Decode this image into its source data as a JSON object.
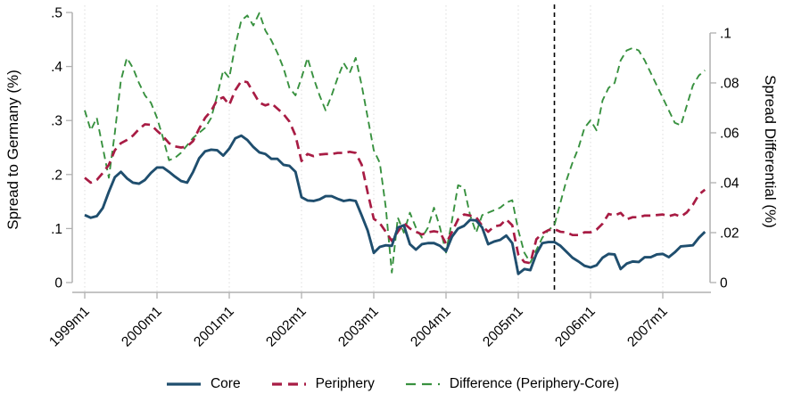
{
  "axes": {
    "left_title": "Spread to Germany (%)",
    "right_title": "Spread Differential (%)",
    "left_ticks": [
      "0",
      ".1",
      ".2",
      ".3",
      ".4",
      ".5"
    ],
    "right_ticks": [
      "0",
      ".02",
      ".04",
      ".06",
      ".08",
      ".1"
    ],
    "x_ticks": [
      "1999m1",
      "2000m1",
      "2001m1",
      "2002m1",
      "2003m1",
      "2004m1",
      "2005m1",
      "2006m1",
      "2007m1"
    ]
  },
  "legend": {
    "core_label": "Core",
    "periphery_label": "Periphery",
    "difference_label": "Difference (Periphery-Core)"
  },
  "colors": {
    "core": "#1f4e6e",
    "periphery": "#a81c44",
    "difference": "#38913f",
    "reference_line": "#000000",
    "grid": "#dcdcdc",
    "axis": "#b0b0b0"
  },
  "chart_data": {
    "type": "line",
    "x_start": "1999m1",
    "x_end": "2007m8",
    "frequency": "monthly",
    "x_tick_labels": [
      "1999m1",
      "2000m1",
      "2001m1",
      "2002m1",
      "2003m1",
      "2004m1",
      "2005m1",
      "2006m1",
      "2007m1"
    ],
    "left_ylim": [
      0,
      0.5
    ],
    "right_ylim": [
      0,
      0.1
    ],
    "grid": "vertical-dotted-at-years",
    "legend_position": "bottom-center",
    "reference_line_x": "2005m7",
    "series": [
      {
        "name": "Core",
        "axis": "left",
        "style": "solid",
        "values": [
          0.125,
          0.12,
          0.123,
          0.138,
          0.168,
          0.195,
          0.205,
          0.193,
          0.185,
          0.183,
          0.19,
          0.203,
          0.213,
          0.213,
          0.205,
          0.196,
          0.188,
          0.185,
          0.205,
          0.23,
          0.243,
          0.246,
          0.245,
          0.235,
          0.248,
          0.267,
          0.272,
          0.264,
          0.251,
          0.241,
          0.238,
          0.229,
          0.229,
          0.218,
          0.216,
          0.205,
          0.158,
          0.152,
          0.151,
          0.154,
          0.16,
          0.16,
          0.155,
          0.151,
          0.153,
          0.151,
          0.124,
          0.096,
          0.055,
          0.066,
          0.069,
          0.068,
          0.102,
          0.106,
          0.071,
          0.061,
          0.071,
          0.073,
          0.073,
          0.068,
          0.058,
          0.085,
          0.1,
          0.105,
          0.116,
          0.115,
          0.102,
          0.071,
          0.076,
          0.079,
          0.087,
          0.073,
          0.016,
          0.025,
          0.023,
          0.053,
          0.073,
          0.075,
          0.075,
          0.068,
          0.057,
          0.046,
          0.039,
          0.031,
          0.028,
          0.032,
          0.046,
          0.053,
          0.052,
          0.025,
          0.035,
          0.039,
          0.038,
          0.047,
          0.047,
          0.052,
          0.053,
          0.047,
          0.056,
          0.067,
          0.068,
          0.069,
          0.083,
          0.094
        ]
      },
      {
        "name": "Periphery",
        "axis": "left",
        "style": "dashed",
        "values": [
          0.194,
          0.185,
          0.19,
          0.203,
          0.218,
          0.245,
          0.258,
          0.264,
          0.272,
          0.284,
          0.293,
          0.292,
          0.281,
          0.271,
          0.258,
          0.252,
          0.25,
          0.252,
          0.262,
          0.285,
          0.305,
          0.318,
          0.338,
          0.343,
          0.329,
          0.356,
          0.373,
          0.371,
          0.352,
          0.333,
          0.328,
          0.332,
          0.322,
          0.312,
          0.298,
          0.272,
          0.225,
          0.238,
          0.234,
          0.237,
          0.238,
          0.238,
          0.24,
          0.24,
          0.242,
          0.24,
          0.218,
          0.166,
          0.118,
          0.11,
          0.094,
          0.077,
          0.094,
          0.11,
          0.1,
          0.094,
          0.089,
          0.093,
          0.095,
          0.093,
          0.072,
          0.094,
          0.117,
          0.126,
          0.124,
          0.121,
          0.105,
          0.094,
          0.104,
          0.106,
          0.117,
          0.106,
          0.052,
          0.038,
          0.036,
          0.08,
          0.091,
          0.097,
          0.099,
          0.094,
          0.093,
          0.088,
          0.088,
          0.093,
          0.093,
          0.098,
          0.109,
          0.127,
          0.124,
          0.129,
          0.117,
          0.121,
          0.121,
          0.124,
          0.124,
          0.125,
          0.126,
          0.123,
          0.126,
          0.122,
          0.13,
          0.144,
          0.163,
          0.172
        ]
      },
      {
        "name": "Difference (Periphery-Core)",
        "axis": "right",
        "style": "dashed",
        "values": [
          0.069,
          0.061,
          0.066,
          0.054,
          0.042,
          0.06,
          0.081,
          0.09,
          0.086,
          0.08,
          0.075,
          0.072,
          0.066,
          0.058,
          0.049,
          0.05,
          0.052,
          0.055,
          0.058,
          0.06,
          0.062,
          0.066,
          0.075,
          0.085,
          0.082,
          0.095,
          0.105,
          0.107,
          0.103,
          0.108,
          0.101,
          0.097,
          0.092,
          0.086,
          0.078,
          0.075,
          0.082,
          0.09,
          0.082,
          0.075,
          0.069,
          0.075,
          0.082,
          0.088,
          0.084,
          0.09,
          0.079,
          0.066,
          0.053,
          0.048,
          0.03,
          0.004,
          0.026,
          0.02,
          0.028,
          0.022,
          0.018,
          0.022,
          0.03,
          0.022,
          0.012,
          0.025,
          0.039,
          0.038,
          0.027,
          0.02,
          0.027,
          0.028,
          0.029,
          0.03,
          0.032,
          0.033,
          0.021,
          0.012,
          0.008,
          0.013,
          0.018,
          0.021,
          0.023,
          0.032,
          0.041,
          0.048,
          0.054,
          0.062,
          0.065,
          0.061,
          0.073,
          0.078,
          0.08,
          0.089,
          0.093,
          0.094,
          0.093,
          0.089,
          0.084,
          0.079,
          0.074,
          0.069,
          0.064,
          0.063,
          0.071,
          0.079,
          0.083,
          0.085
        ]
      }
    ]
  }
}
